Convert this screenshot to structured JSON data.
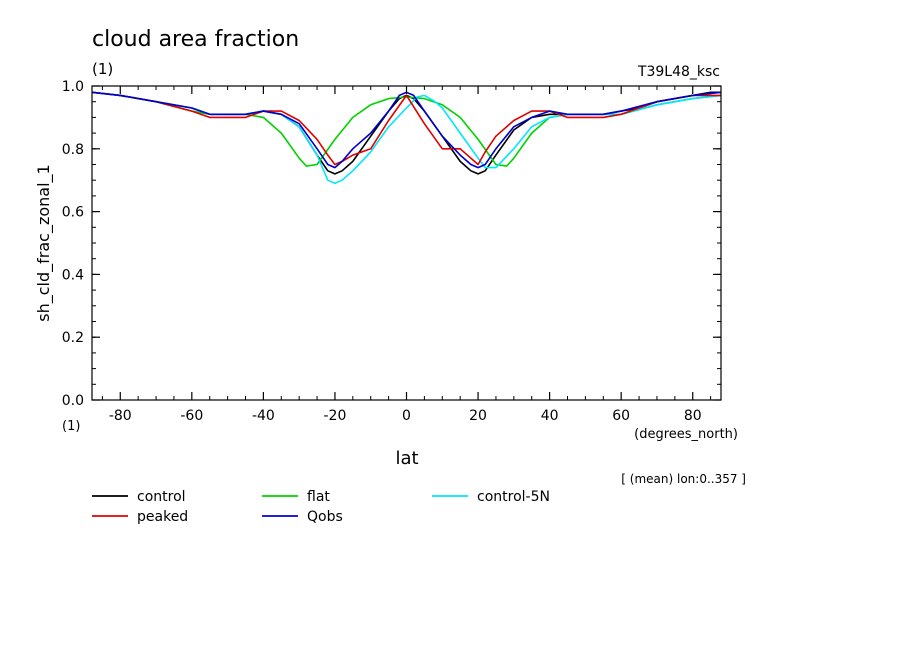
{
  "chart_data": {
    "type": "line",
    "title": "cloud area fraction",
    "subtitle_left": "(1)",
    "subtitle_right": "T39L48_ksc",
    "xlabel": "lat",
    "xunits": "(degrees_north)",
    "ylabel": "sh_cld_frac_zonal_1",
    "yunits": "(1)",
    "note": "[ (mean) lon:0..357 ]",
    "xlim": [
      -87.9,
      87.9
    ],
    "ylim": [
      0,
      1
    ],
    "xticks": [
      -80,
      -60,
      -40,
      -20,
      0,
      20,
      40,
      60,
      80
    ],
    "yticks": [
      0.0,
      0.2,
      0.4,
      0.6,
      0.8,
      1.0
    ],
    "xtick_labels": [
      "-80",
      "-60",
      "-40",
      "-20",
      "0",
      "20",
      "40",
      "60",
      "80"
    ],
    "ytick_labels": [
      "0.0",
      "0.2",
      "0.4",
      "0.6",
      "0.8",
      "1.0"
    ],
    "series": [
      {
        "name": "control",
        "color": "#000000",
        "x": [
          -87.9,
          -80,
          -70,
          -60,
          -55,
          -50,
          -45,
          -40,
          -35,
          -30,
          -25,
          -22,
          -20,
          -18,
          -15,
          -10,
          -5,
          -2,
          0,
          2,
          5,
          10,
          15,
          18,
          20,
          22,
          25,
          30,
          35,
          40,
          45,
          50,
          55,
          60,
          65,
          70,
          75,
          80,
          85,
          87.9
        ],
        "y": [
          0.98,
          0.97,
          0.95,
          0.93,
          0.91,
          0.91,
          0.91,
          0.92,
          0.91,
          0.87,
          0.78,
          0.73,
          0.72,
          0.73,
          0.76,
          0.84,
          0.92,
          0.96,
          0.97,
          0.96,
          0.92,
          0.84,
          0.76,
          0.73,
          0.72,
          0.73,
          0.78,
          0.86,
          0.9,
          0.91,
          0.91,
          0.91,
          0.91,
          0.92,
          0.93,
          0.95,
          0.96,
          0.97,
          0.98,
          0.98
        ]
      },
      {
        "name": "flat",
        "color": "#00d200",
        "x": [
          -87.9,
          -80,
          -70,
          -60,
          -55,
          -50,
          -45,
          -40,
          -35,
          -30,
          -28,
          -25,
          -20,
          -15,
          -10,
          -5,
          0,
          5,
          10,
          15,
          20,
          25,
          28,
          30,
          35,
          40,
          45,
          50,
          55,
          60,
          70,
          80,
          87.9
        ],
        "y": [
          0.98,
          0.97,
          0.95,
          0.92,
          0.91,
          0.91,
          0.91,
          0.9,
          0.85,
          0.77,
          0.745,
          0.75,
          0.83,
          0.9,
          0.94,
          0.96,
          0.965,
          0.96,
          0.94,
          0.9,
          0.83,
          0.75,
          0.745,
          0.77,
          0.85,
          0.9,
          0.91,
          0.91,
          0.91,
          0.91,
          0.94,
          0.96,
          0.97
        ]
      },
      {
        "name": "control-5N",
        "color": "#00e6ff",
        "x": [
          -87.9,
          -80,
          -70,
          -60,
          -55,
          -50,
          -45,
          -40,
          -35,
          -30,
          -25,
          -22,
          -20,
          -18,
          -15,
          -10,
          -5,
          0,
          3,
          5,
          8,
          10,
          15,
          20,
          22,
          25,
          30,
          35,
          40,
          45,
          50,
          55,
          60,
          70,
          80,
          87.9
        ],
        "y": [
          0.98,
          0.97,
          0.95,
          0.93,
          0.91,
          0.91,
          0.91,
          0.92,
          0.91,
          0.87,
          0.78,
          0.7,
          0.69,
          0.7,
          0.73,
          0.79,
          0.87,
          0.93,
          0.965,
          0.97,
          0.95,
          0.93,
          0.85,
          0.77,
          0.74,
          0.74,
          0.8,
          0.87,
          0.9,
          0.91,
          0.91,
          0.91,
          0.91,
          0.94,
          0.96,
          0.97
        ]
      },
      {
        "name": "peaked",
        "color": "#e00000",
        "x": [
          -87.9,
          -80,
          -70,
          -60,
          -55,
          -50,
          -45,
          -40,
          -35,
          -30,
          -25,
          -22,
          -20,
          -18,
          -15,
          -10,
          -5,
          0,
          5,
          10,
          15,
          20,
          22,
          25,
          30,
          35,
          40,
          45,
          50,
          55,
          60,
          70,
          80,
          87.9
        ],
        "y": [
          0.98,
          0.97,
          0.95,
          0.92,
          0.9,
          0.9,
          0.9,
          0.92,
          0.92,
          0.89,
          0.83,
          0.78,
          0.75,
          0.76,
          0.78,
          0.8,
          0.89,
          0.97,
          0.88,
          0.8,
          0.8,
          0.75,
          0.79,
          0.84,
          0.89,
          0.92,
          0.92,
          0.9,
          0.9,
          0.9,
          0.91,
          0.95,
          0.97,
          0.97
        ]
      },
      {
        "name": "Qobs",
        "color": "#0000cc",
        "x": [
          -87.9,
          -80,
          -70,
          -60,
          -55,
          -50,
          -45,
          -40,
          -35,
          -30,
          -25,
          -22,
          -20,
          -18,
          -15,
          -10,
          -5,
          -2,
          0,
          2,
          5,
          10,
          15,
          18,
          20,
          22,
          25,
          30,
          35,
          40,
          45,
          50,
          55,
          60,
          70,
          80,
          87.9
        ],
        "y": [
          0.98,
          0.97,
          0.95,
          0.93,
          0.91,
          0.91,
          0.91,
          0.92,
          0.91,
          0.88,
          0.8,
          0.75,
          0.74,
          0.76,
          0.8,
          0.85,
          0.92,
          0.97,
          0.98,
          0.97,
          0.92,
          0.84,
          0.78,
          0.75,
          0.74,
          0.75,
          0.8,
          0.87,
          0.9,
          0.92,
          0.91,
          0.91,
          0.91,
          0.92,
          0.95,
          0.97,
          0.98
        ]
      }
    ],
    "legend": {
      "placement": "below",
      "entries": [
        {
          "name": "control",
          "color": "#000000"
        },
        {
          "name": "flat",
          "color": "#00d200"
        },
        {
          "name": "control-5N",
          "color": "#00e6ff"
        },
        {
          "name": "peaked",
          "color": "#e00000"
        },
        {
          "name": "Qobs",
          "color": "#0000cc"
        }
      ]
    },
    "grid": false
  }
}
